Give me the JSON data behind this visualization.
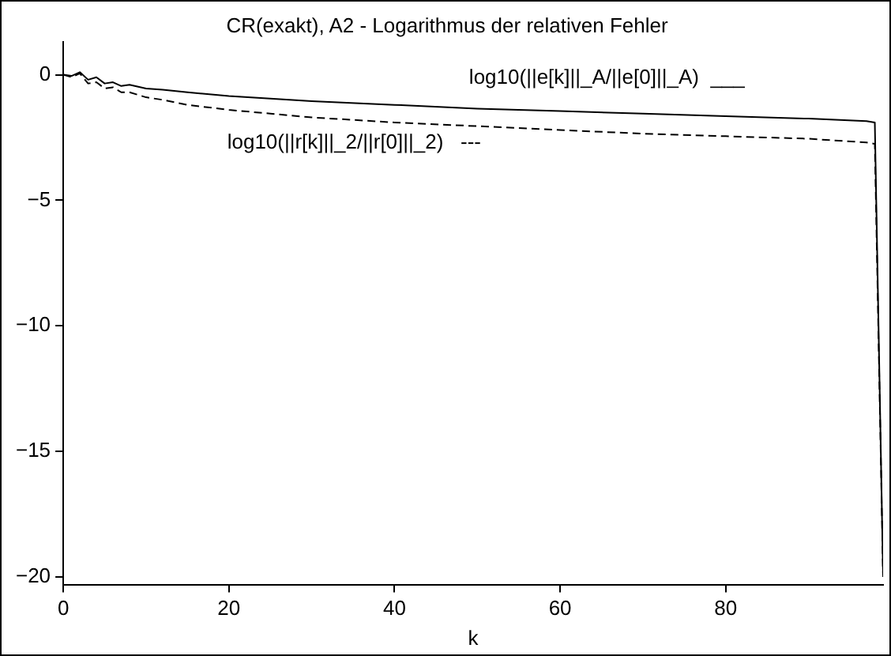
{
  "chart_data": {
    "type": "line",
    "title": "CR(exakt), A2 - Logarithmus der relativen Fehler",
    "xlabel": "k",
    "xlim": [
      0,
      99
    ],
    "xticks": [
      0,
      20,
      40,
      60,
      80
    ],
    "ylim": [
      -20.3,
      1.3
    ],
    "yticks": [
      -20,
      -15,
      -10,
      -5,
      0
    ],
    "grid": false,
    "legend": false,
    "marker": "none",
    "annotations": [
      "log10(||e[k]||_A/||e[0]||_A)  ___",
      "log10(||r[k]||_2/||r[0]||_2)   ---"
    ],
    "series": [
      {
        "color": "#000000",
        "line_style": "solid",
        "x": [
          0,
          1,
          2,
          3,
          4,
          5,
          6,
          7,
          8,
          10,
          12,
          15,
          20,
          25,
          30,
          40,
          50,
          60,
          70,
          80,
          90,
          97,
          98,
          99
        ],
        "values": [
          0,
          -0.05,
          0.1,
          -0.2,
          -0.1,
          -0.35,
          -0.3,
          -0.45,
          -0.4,
          -0.55,
          -0.6,
          -0.7,
          -0.85,
          -0.95,
          -1.05,
          -1.2,
          -1.35,
          -1.45,
          -1.55,
          -1.65,
          -1.75,
          -1.85,
          -1.9,
          -20
        ]
      },
      {
        "color": "#000000",
        "line_style": "dashed",
        "x": [
          0,
          1,
          2,
          3,
          4,
          5,
          6,
          7,
          8,
          10,
          12,
          15,
          20,
          25,
          30,
          40,
          50,
          60,
          70,
          80,
          90,
          97,
          98,
          99
        ],
        "values": [
          0,
          -0.1,
          0.05,
          -0.35,
          -0.3,
          -0.55,
          -0.5,
          -0.7,
          -0.7,
          -0.9,
          -1.0,
          -1.2,
          -1.4,
          -1.55,
          -1.7,
          -1.9,
          -2.05,
          -2.2,
          -2.35,
          -2.45,
          -2.55,
          -2.7,
          -2.75,
          -20
        ]
      }
    ]
  }
}
